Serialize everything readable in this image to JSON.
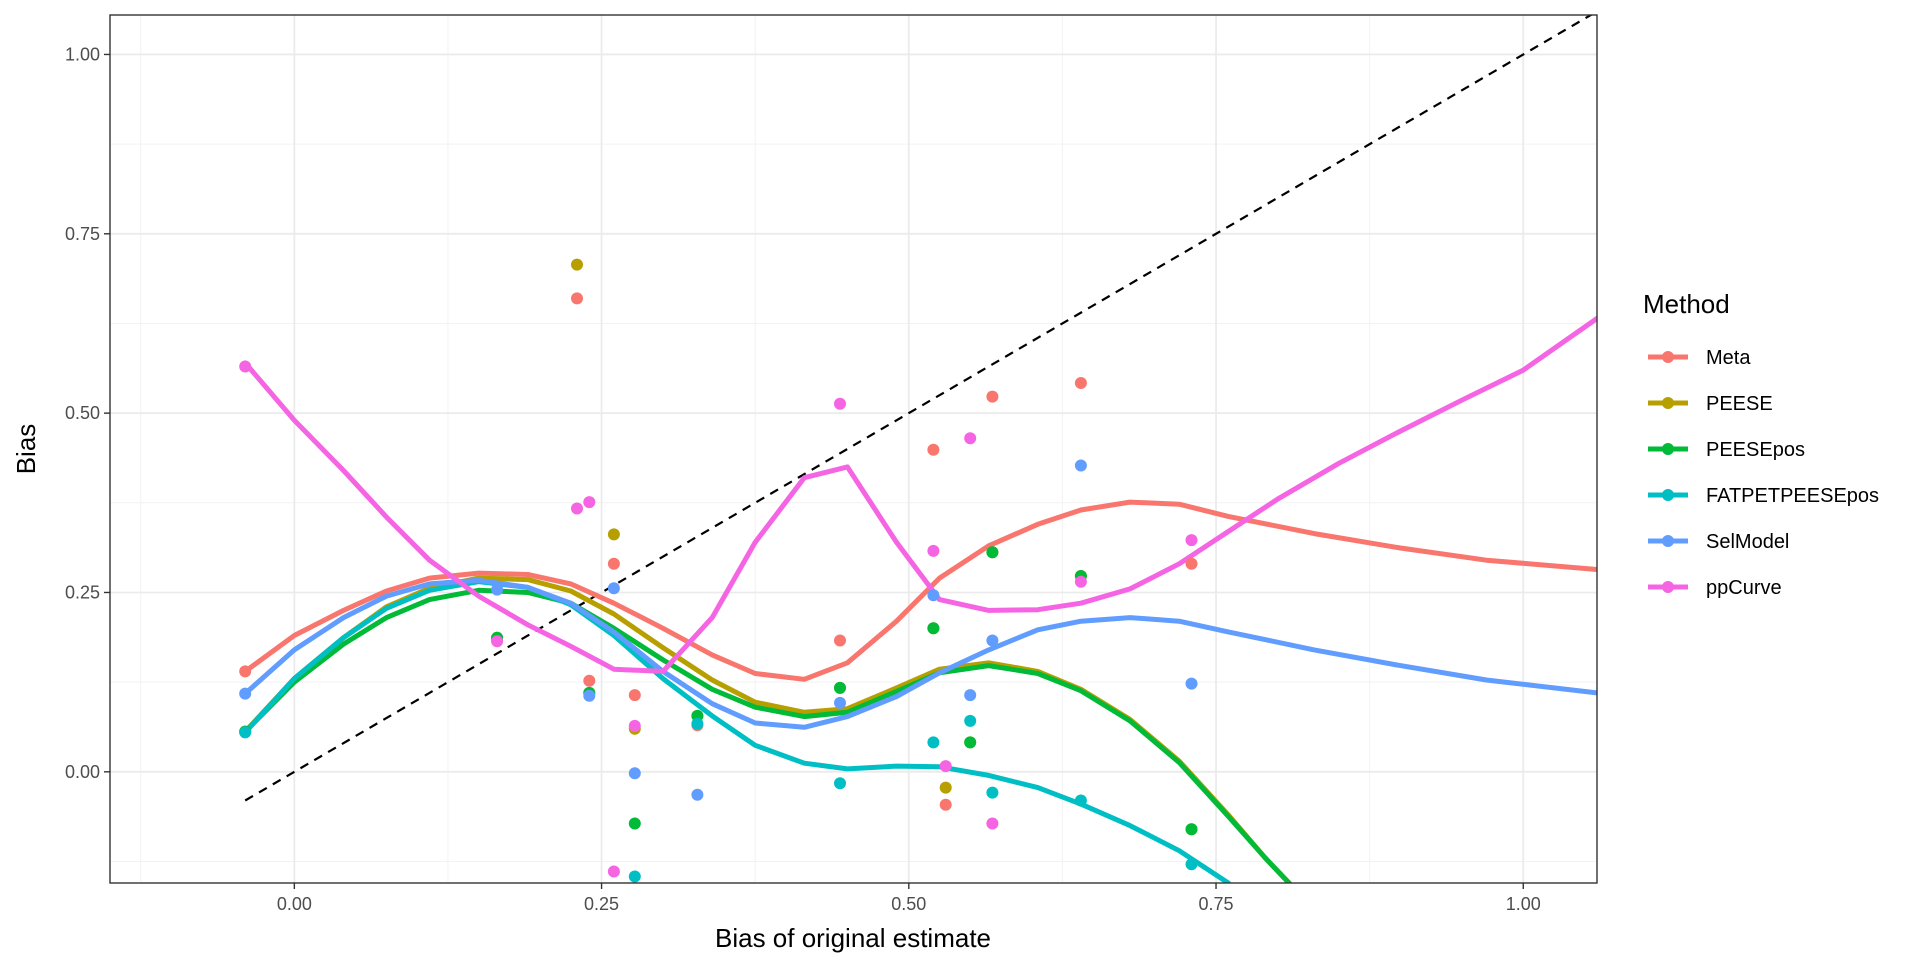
{
  "chart_data": {
    "type": "scatter",
    "xlabel": "Bias of original estimate",
    "ylabel": "Bias",
    "xlim": [
      -0.15,
      1.06
    ],
    "ylim": [
      -0.155,
      1.055
    ],
    "x_ticks": [
      0.0,
      0.25,
      0.5,
      0.75,
      1.0
    ],
    "x_tick_labels": [
      "0.00",
      "0.25",
      "0.50",
      "0.75",
      "1.00"
    ],
    "y_ticks": [
      0.0,
      0.25,
      0.5,
      0.75,
      1.0
    ],
    "y_tick_labels": [
      "0.00",
      "0.25",
      "0.50",
      "0.75",
      "1.00"
    ],
    "grid": true,
    "reference_line": {
      "style": "dashed",
      "color": "#000000",
      "x": [
        -0.04,
        1.06
      ],
      "y": [
        -0.04,
        1.06
      ]
    },
    "legend": {
      "title": "Method",
      "position": "right"
    },
    "series": [
      {
        "name": "Meta",
        "color": "#F8766D",
        "points": [
          [
            -0.04,
            0.14
          ],
          [
            0.165,
            0.183
          ],
          [
            0.23,
            0.66
          ],
          [
            0.24,
            0.127
          ],
          [
            0.26,
            0.29
          ],
          [
            0.277,
            0.107
          ],
          [
            0.328,
            0.065
          ],
          [
            0.444,
            0.183
          ],
          [
            0.52,
            0.449
          ],
          [
            0.53,
            -0.046
          ],
          [
            0.568,
            0.523
          ],
          [
            0.64,
            0.542
          ],
          [
            0.73,
            0.29
          ]
        ],
        "curve": [
          [
            -0.04,
            0.14
          ],
          [
            0.0,
            0.19
          ],
          [
            0.04,
            0.225
          ],
          [
            0.075,
            0.252
          ],
          [
            0.11,
            0.27
          ],
          [
            0.15,
            0.277
          ],
          [
            0.19,
            0.275
          ],
          [
            0.225,
            0.262
          ],
          [
            0.26,
            0.235
          ],
          [
            0.3,
            0.2
          ],
          [
            0.34,
            0.163
          ],
          [
            0.375,
            0.137
          ],
          [
            0.415,
            0.129
          ],
          [
            0.45,
            0.152
          ],
          [
            0.49,
            0.21
          ],
          [
            0.525,
            0.27
          ],
          [
            0.565,
            0.315
          ],
          [
            0.605,
            0.345
          ],
          [
            0.64,
            0.365
          ],
          [
            0.68,
            0.376
          ],
          [
            0.72,
            0.373
          ],
          [
            0.76,
            0.356
          ],
          [
            0.83,
            0.332
          ],
          [
            0.9,
            0.312
          ],
          [
            0.97,
            0.295
          ],
          [
            1.06,
            0.282
          ]
        ]
      },
      {
        "name": "PEESE",
        "color": "#B79F00",
        "points": [
          [
            -0.04,
            0.056
          ],
          [
            0.165,
            0.187
          ],
          [
            0.23,
            0.707
          ],
          [
            0.24,
            0.11
          ],
          [
            0.26,
            0.331
          ],
          [
            0.277,
            0.06
          ],
          [
            0.328,
            0.078
          ],
          [
            0.444,
            0.117
          ],
          [
            0.52,
            0.2
          ],
          [
            0.53,
            -0.022
          ],
          [
            0.55,
            0.041
          ],
          [
            0.568,
            0.306
          ],
          [
            0.64,
            0.273
          ],
          [
            0.73,
            -0.08
          ]
        ],
        "curve": [
          [
            -0.04,
            0.056
          ],
          [
            0.0,
            0.13
          ],
          [
            0.04,
            0.187
          ],
          [
            0.075,
            0.23
          ],
          [
            0.11,
            0.256
          ],
          [
            0.15,
            0.27
          ],
          [
            0.19,
            0.268
          ],
          [
            0.225,
            0.252
          ],
          [
            0.26,
            0.22
          ],
          [
            0.3,
            0.173
          ],
          [
            0.34,
            0.128
          ],
          [
            0.375,
            0.097
          ],
          [
            0.415,
            0.083
          ],
          [
            0.45,
            0.088
          ],
          [
            0.49,
            0.117
          ],
          [
            0.525,
            0.143
          ],
          [
            0.565,
            0.152
          ],
          [
            0.605,
            0.14
          ],
          [
            0.64,
            0.115
          ],
          [
            0.68,
            0.073
          ],
          [
            0.72,
            0.015
          ],
          [
            0.76,
            -0.06
          ],
          [
            0.79,
            -0.12
          ],
          [
            0.815,
            -0.165
          ]
        ]
      },
      {
        "name": "PEESEpos",
        "color": "#00BA38",
        "points": [
          [
            -0.04,
            0.056
          ],
          [
            0.165,
            0.187
          ],
          [
            0.24,
            0.11
          ],
          [
            0.277,
            -0.072
          ],
          [
            0.328,
            0.078
          ],
          [
            0.444,
            0.117
          ],
          [
            0.52,
            0.2
          ],
          [
            0.55,
            0.041
          ],
          [
            0.568,
            0.306
          ],
          [
            0.64,
            0.273
          ],
          [
            0.73,
            -0.08
          ]
        ],
        "curve": [
          [
            -0.04,
            0.056
          ],
          [
            0.0,
            0.125
          ],
          [
            0.04,
            0.178
          ],
          [
            0.075,
            0.215
          ],
          [
            0.11,
            0.24
          ],
          [
            0.15,
            0.253
          ],
          [
            0.19,
            0.25
          ],
          [
            0.225,
            0.235
          ],
          [
            0.26,
            0.2
          ],
          [
            0.3,
            0.156
          ],
          [
            0.34,
            0.115
          ],
          [
            0.375,
            0.09
          ],
          [
            0.415,
            0.077
          ],
          [
            0.45,
            0.083
          ],
          [
            0.49,
            0.112
          ],
          [
            0.525,
            0.138
          ],
          [
            0.565,
            0.148
          ],
          [
            0.605,
            0.137
          ],
          [
            0.64,
            0.113
          ],
          [
            0.68,
            0.071
          ],
          [
            0.72,
            0.013
          ],
          [
            0.76,
            -0.062
          ],
          [
            0.79,
            -0.12
          ],
          [
            0.815,
            -0.165
          ]
        ]
      },
      {
        "name": "FATPETPEESEpos",
        "color": "#00BFC4",
        "points": [
          [
            -0.04,
            0.055
          ],
          [
            0.277,
            -0.146
          ],
          [
            0.328,
            0.067
          ],
          [
            0.444,
            -0.016
          ],
          [
            0.52,
            0.041
          ],
          [
            0.55,
            0.071
          ],
          [
            0.568,
            -0.029
          ],
          [
            0.64,
            -0.04
          ],
          [
            0.73,
            -0.129
          ]
        ],
        "curve": [
          [
            -0.04,
            0.055
          ],
          [
            0.0,
            0.13
          ],
          [
            0.04,
            0.187
          ],
          [
            0.075,
            0.228
          ],
          [
            0.11,
            0.253
          ],
          [
            0.15,
            0.265
          ],
          [
            0.19,
            0.257
          ],
          [
            0.225,
            0.233
          ],
          [
            0.26,
            0.19
          ],
          [
            0.3,
            0.13
          ],
          [
            0.34,
            0.078
          ],
          [
            0.375,
            0.037
          ],
          [
            0.415,
            0.012
          ],
          [
            0.45,
            0.004
          ],
          [
            0.49,
            0.008
          ],
          [
            0.525,
            0.007
          ],
          [
            0.565,
            -0.005
          ],
          [
            0.605,
            -0.022
          ],
          [
            0.64,
            -0.045
          ],
          [
            0.68,
            -0.075
          ],
          [
            0.72,
            -0.11
          ],
          [
            0.76,
            -0.155
          ]
        ]
      },
      {
        "name": "SelModel",
        "color": "#619CFF",
        "points": [
          [
            -0.04,
            0.109
          ],
          [
            0.165,
            0.254
          ],
          [
            0.24,
            0.106
          ],
          [
            0.26,
            0.256
          ],
          [
            0.277,
            -0.002
          ],
          [
            0.328,
            -0.032
          ],
          [
            0.444,
            0.096
          ],
          [
            0.52,
            0.246
          ],
          [
            0.55,
            0.107
          ],
          [
            0.568,
            0.183
          ],
          [
            0.64,
            0.427
          ],
          [
            0.73,
            0.123
          ]
        ],
        "curve": [
          [
            -0.04,
            0.109
          ],
          [
            0.0,
            0.17
          ],
          [
            0.04,
            0.215
          ],
          [
            0.075,
            0.245
          ],
          [
            0.11,
            0.262
          ],
          [
            0.15,
            0.267
          ],
          [
            0.19,
            0.257
          ],
          [
            0.225,
            0.235
          ],
          [
            0.26,
            0.195
          ],
          [
            0.3,
            0.14
          ],
          [
            0.34,
            0.095
          ],
          [
            0.375,
            0.068
          ],
          [
            0.415,
            0.062
          ],
          [
            0.45,
            0.077
          ],
          [
            0.49,
            0.105
          ],
          [
            0.525,
            0.138
          ],
          [
            0.565,
            0.17
          ],
          [
            0.605,
            0.198
          ],
          [
            0.64,
            0.21
          ],
          [
            0.68,
            0.215
          ],
          [
            0.72,
            0.21
          ],
          [
            0.76,
            0.195
          ],
          [
            0.83,
            0.17
          ],
          [
            0.9,
            0.148
          ],
          [
            0.97,
            0.128
          ],
          [
            1.06,
            0.11
          ]
        ]
      },
      {
        "name": "ppCurve",
        "color": "#F564E3",
        "points": [
          [
            -0.04,
            0.565
          ],
          [
            0.165,
            0.182
          ],
          [
            0.23,
            0.367
          ],
          [
            0.24,
            0.376
          ],
          [
            0.26,
            -0.139
          ],
          [
            0.277,
            0.064
          ],
          [
            0.444,
            0.513
          ],
          [
            0.52,
            0.308
          ],
          [
            0.53,
            0.008
          ],
          [
            0.55,
            0.465
          ],
          [
            0.568,
            -0.072
          ],
          [
            0.64,
            0.265
          ],
          [
            0.73,
            0.323
          ]
        ],
        "curve": [
          [
            -0.04,
            0.57
          ],
          [
            0.0,
            0.49
          ],
          [
            0.04,
            0.42
          ],
          [
            0.075,
            0.355
          ],
          [
            0.11,
            0.295
          ],
          [
            0.15,
            0.245
          ],
          [
            0.19,
            0.205
          ],
          [
            0.225,
            0.175
          ],
          [
            0.26,
            0.143
          ],
          [
            0.3,
            0.14
          ],
          [
            0.34,
            0.215
          ],
          [
            0.375,
            0.32
          ],
          [
            0.415,
            0.41
          ],
          [
            0.45,
            0.425
          ],
          [
            0.49,
            0.32
          ],
          [
            0.525,
            0.24
          ],
          [
            0.565,
            0.225
          ],
          [
            0.605,
            0.226
          ],
          [
            0.64,
            0.235
          ],
          [
            0.68,
            0.255
          ],
          [
            0.72,
            0.29
          ],
          [
            0.76,
            0.335
          ],
          [
            0.8,
            0.38
          ],
          [
            0.85,
            0.43
          ],
          [
            0.9,
            0.475
          ],
          [
            0.95,
            0.518
          ],
          [
            1.0,
            0.56
          ],
          [
            1.06,
            0.632
          ]
        ]
      }
    ]
  }
}
